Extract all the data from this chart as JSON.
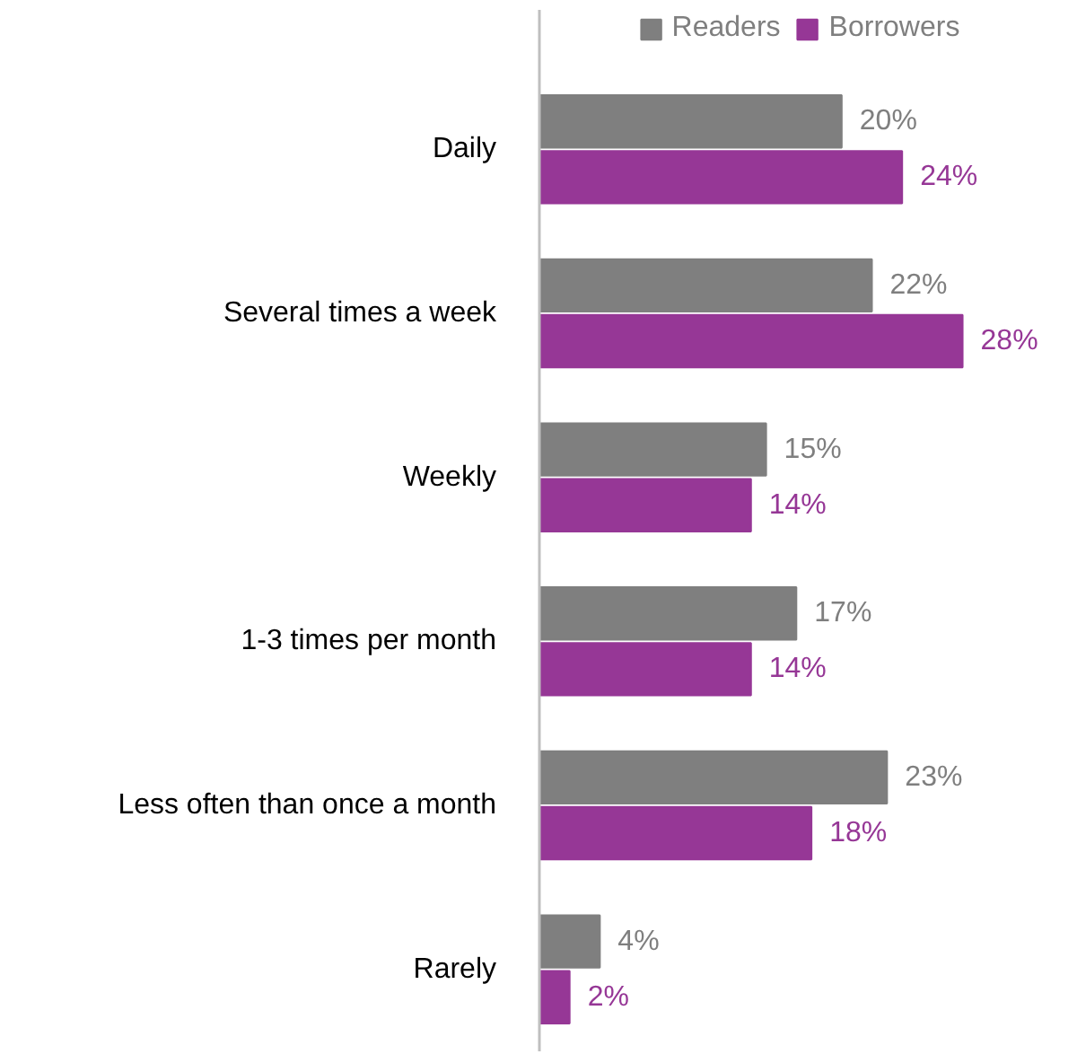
{
  "chart_data": {
    "type": "bar",
    "orientation": "horizontal",
    "categories": [
      "Daily",
      "Several times a week",
      "Weekly",
      "1-3 times per month",
      "Less often than once a month",
      "Rarely"
    ],
    "series": [
      {
        "name": "Readers",
        "color": "#7f7f7f",
        "values": [
          20,
          22,
          15,
          17,
          23,
          4
        ],
        "value_labels": [
          "20%",
          "22%",
          "15%",
          "17%",
          "23%",
          "4%"
        ]
      },
      {
        "name": "Borrowers",
        "color": "#963796",
        "values": [
          24,
          28,
          14,
          14,
          18,
          2
        ],
        "value_labels": [
          "24%",
          "28%",
          "14%",
          "14%",
          "18%",
          "2%"
        ]
      }
    ],
    "legend": "top",
    "grid": false
  }
}
